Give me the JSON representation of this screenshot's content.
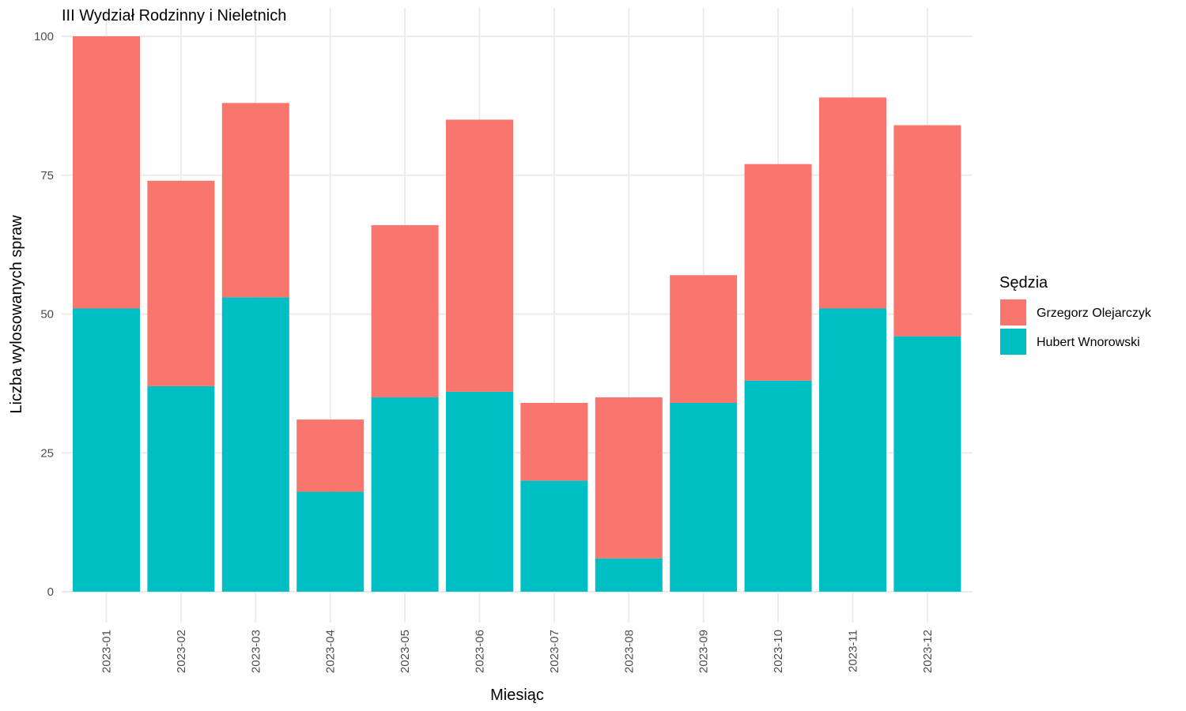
{
  "chart_data": {
    "type": "bar",
    "stacked": true,
    "title": "III Wydział Rodzinny i Nieletnich",
    "xlabel": "Miesiąc",
    "ylabel": "Liczba wylosowanych spraw",
    "ylim": [
      0,
      100
    ],
    "yticks": [
      "0",
      "25",
      "50",
      "75",
      "100"
    ],
    "categories": [
      "2023-01",
      "2023-02",
      "2023-03",
      "2023-04",
      "2023-05",
      "2023-06",
      "2023-07",
      "2023-08",
      "2023-09",
      "2023-10",
      "2023-11",
      "2023-12"
    ],
    "series": [
      {
        "name": "Hubert Wnorowski",
        "color": "#00BFC4",
        "values": [
          51,
          37,
          53,
          18,
          35,
          36,
          20,
          6,
          34,
          38,
          51,
          46
        ]
      },
      {
        "name": "Grzegorz Olejarczyk",
        "color": "#F8766D",
        "values": [
          49,
          37,
          35,
          13,
          31,
          49,
          14,
          29,
          23,
          39,
          38,
          38
        ]
      }
    ],
    "legend": {
      "title": "Sędzia",
      "position": "right",
      "entries": [
        "Grzegorz Olejarczyk",
        "Hubert Wnorowski"
      ]
    },
    "grid": true
  }
}
